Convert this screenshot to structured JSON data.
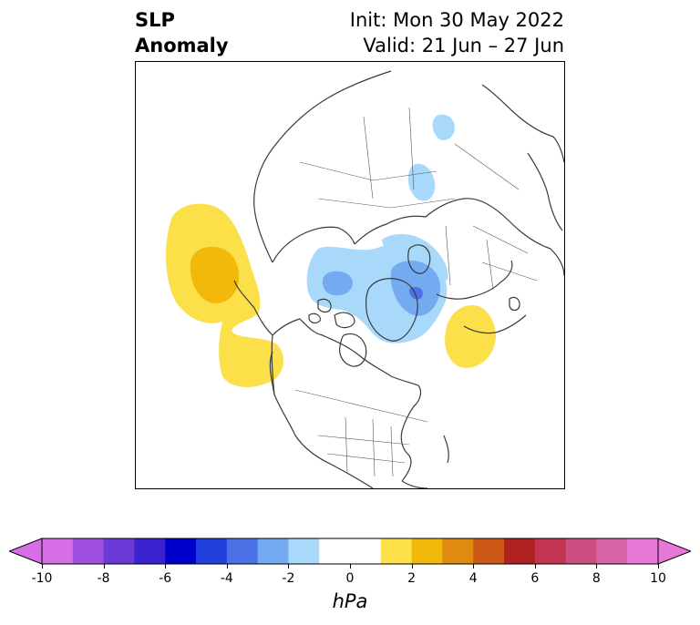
{
  "title": {
    "left_line1": "SLP",
    "left_line2": "Anomaly",
    "right_line1": "Init: Mon 30 May 2022",
    "right_line2": "Valid: 21 Jun – 27 Jun"
  },
  "colorbar": {
    "label": "hPa",
    "ticks": [
      "-10",
      "-8",
      "-6",
      "-4",
      "-2",
      "0",
      "2",
      "4",
      "6",
      "8",
      "10"
    ],
    "colors": [
      "#d66ee6",
      "#a04fe0",
      "#6a3ad6",
      "#3a22cf",
      "#0000cc",
      "#2040dd",
      "#4a72e6",
      "#74aaf0",
      "#a8d8fa",
      "#ffffff",
      "#ffffff",
      "#fbe04a",
      "#f2b80a",
      "#e08a10",
      "#cc5818",
      "#b02222",
      "#c23450",
      "#cc4e80",
      "#d864a8",
      "#e878d8"
    ],
    "extend_colors": {
      "low": "#d66ee6",
      "high": "#e878d8"
    }
  },
  "map": {
    "projection": "north-polar-stereographic",
    "region": "Northern Hemisphere, North America centered",
    "anomaly_colors": {
      "pos_2": "#fbe04a",
      "pos_4": "#f2b80a",
      "neg_2": "#a8d8fa",
      "neg_4": "#74aaf0",
      "neg_6": "#4a72e6"
    },
    "coastline_color": "#3a3a3a"
  }
}
